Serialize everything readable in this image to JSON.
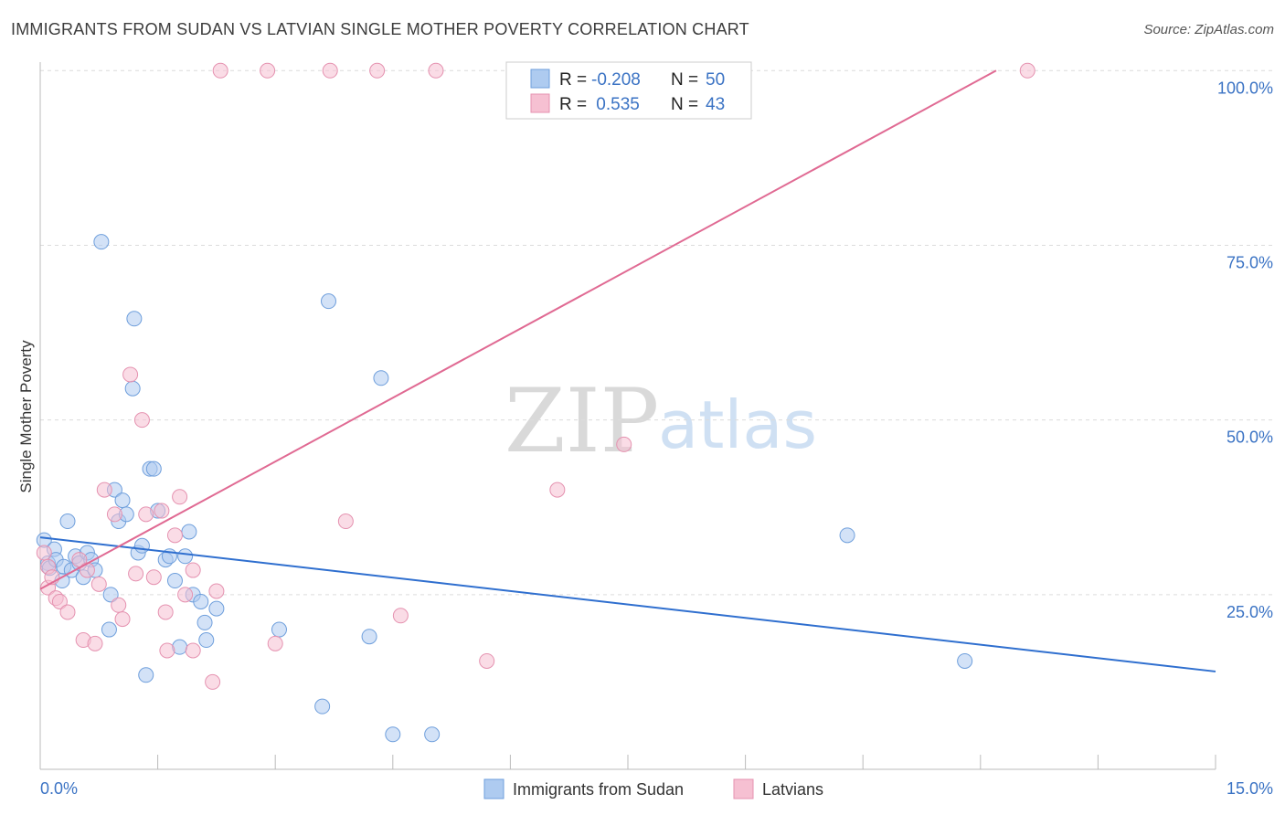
{
  "title": "IMMIGRANTS FROM SUDAN VS LATVIAN SINGLE MOTHER POVERTY CORRELATION CHART",
  "source": "Source: ZipAtlas.com",
  "watermark": {
    "zip": "ZIP",
    "atlas": "atlas"
  },
  "colors": {
    "sudan_fill": "#aecbf0",
    "sudan_stroke": "#6f9fdc",
    "sudan_line": "#2f6fcf",
    "latvian_fill": "#f6c0d2",
    "latvian_stroke": "#e592b0",
    "latvian_line": "#e06a93",
    "tick_text": "#3b73c4",
    "grid": "#dcdcdc"
  },
  "stats": [
    {
      "label_r": "R =",
      "r": "-0.208",
      "label_n": "N =",
      "n": "50"
    },
    {
      "label_r": "R =",
      "r": " 0.535",
      "label_n": "N =",
      "n": "43"
    }
  ],
  "chart_data": {
    "type": "scatter",
    "title": "IMMIGRANTS FROM SUDAN VS LATVIAN SINGLE MOTHER POVERTY CORRELATION CHART",
    "xlabel": "",
    "ylabel": "Single Mother Poverty",
    "xlim": [
      0,
      15
    ],
    "ylim": [
      0,
      102
    ],
    "x_tick_labels": [
      {
        "value": 0,
        "label": "0.0%"
      },
      {
        "value": 15,
        "label": "15.0%"
      }
    ],
    "y_tick_labels": [
      {
        "value": 25,
        "label": "25.0%"
      },
      {
        "value": 50,
        "label": "50.0%"
      },
      {
        "value": 75,
        "label": "75.0%"
      },
      {
        "value": 100,
        "label": "100.0%"
      }
    ],
    "legend": [
      {
        "name": "Immigrants from Sudan",
        "key": "sudan"
      },
      {
        "name": "Latvians",
        "key": "latvian"
      }
    ],
    "series": [
      {
        "name": "Immigrants from Sudan",
        "key": "sudan",
        "trend": {
          "x": [
            0,
            15
          ],
          "y": [
            33.2,
            14.0
          ]
        },
        "points": [
          [
            0.05,
            32.8
          ],
          [
            0.1,
            29.5
          ],
          [
            0.12,
            28.8
          ],
          [
            0.18,
            31.5
          ],
          [
            0.2,
            30.0
          ],
          [
            0.28,
            27.0
          ],
          [
            0.3,
            29.0
          ],
          [
            0.35,
            35.5
          ],
          [
            0.4,
            28.5
          ],
          [
            0.45,
            30.5
          ],
          [
            0.5,
            29.5
          ],
          [
            0.55,
            27.5
          ],
          [
            0.6,
            31.0
          ],
          [
            0.65,
            30.0
          ],
          [
            0.7,
            28.5
          ],
          [
            0.78,
            75.5
          ],
          [
            0.88,
            20.0
          ],
          [
            0.9,
            25.0
          ],
          [
            0.95,
            40.0
          ],
          [
            1.0,
            35.5
          ],
          [
            1.05,
            38.5
          ],
          [
            1.1,
            36.5
          ],
          [
            1.18,
            54.5
          ],
          [
            1.2,
            64.5
          ],
          [
            1.25,
            31.0
          ],
          [
            1.3,
            32.0
          ],
          [
            1.35,
            13.5
          ],
          [
            1.4,
            43.0
          ],
          [
            1.45,
            43.0
          ],
          [
            1.5,
            37.0
          ],
          [
            1.6,
            30.0
          ],
          [
            1.65,
            30.5
          ],
          [
            1.72,
            27.0
          ],
          [
            1.78,
            17.5
          ],
          [
            1.85,
            30.5
          ],
          [
            1.9,
            34.0
          ],
          [
            1.95,
            25.0
          ],
          [
            2.05,
            24.0
          ],
          [
            2.1,
            21.0
          ],
          [
            2.12,
            18.5
          ],
          [
            2.25,
            23.0
          ],
          [
            3.05,
            20.0
          ],
          [
            3.6,
            9.0
          ],
          [
            3.68,
            67.0
          ],
          [
            4.2,
            19.0
          ],
          [
            4.35,
            56.0
          ],
          [
            4.5,
            5.0
          ],
          [
            5.0,
            5.0
          ],
          [
            10.3,
            33.5
          ],
          [
            11.8,
            15.5
          ]
        ]
      },
      {
        "name": "Latvians",
        "key": "latvian",
        "trend": {
          "x": [
            0,
            12.2
          ],
          "y": [
            25.8,
            100.0
          ]
        },
        "points": [
          [
            0.05,
            31.0
          ],
          [
            0.1,
            29.0
          ],
          [
            0.1,
            26.0
          ],
          [
            0.15,
            27.5
          ],
          [
            0.2,
            24.5
          ],
          [
            0.25,
            24.0
          ],
          [
            0.35,
            22.5
          ],
          [
            0.5,
            30.0
          ],
          [
            0.55,
            18.5
          ],
          [
            0.6,
            28.5
          ],
          [
            0.7,
            18.0
          ],
          [
            0.75,
            26.5
          ],
          [
            0.82,
            40.0
          ],
          [
            0.95,
            36.5
          ],
          [
            1.0,
            23.5
          ],
          [
            1.05,
            21.5
          ],
          [
            1.15,
            56.5
          ],
          [
            1.22,
            28.0
          ],
          [
            1.3,
            50.0
          ],
          [
            1.35,
            36.5
          ],
          [
            1.45,
            27.5
          ],
          [
            1.55,
            37.0
          ],
          [
            1.6,
            22.5
          ],
          [
            1.62,
            17.0
          ],
          [
            1.72,
            33.5
          ],
          [
            1.78,
            39.0
          ],
          [
            1.85,
            25.0
          ],
          [
            1.95,
            17.0
          ],
          [
            1.95,
            28.5
          ],
          [
            2.2,
            12.5
          ],
          [
            2.25,
            25.5
          ],
          [
            2.3,
            100.0
          ],
          [
            2.9,
            100.0
          ],
          [
            3.0,
            18.0
          ],
          [
            3.7,
            100.0
          ],
          [
            3.9,
            35.5
          ],
          [
            4.3,
            100.0
          ],
          [
            4.6,
            22.0
          ],
          [
            5.05,
            100.0
          ],
          [
            5.7,
            15.5
          ],
          [
            6.6,
            40.0
          ],
          [
            7.45,
            46.5
          ],
          [
            12.6,
            100.0
          ]
        ]
      }
    ]
  }
}
